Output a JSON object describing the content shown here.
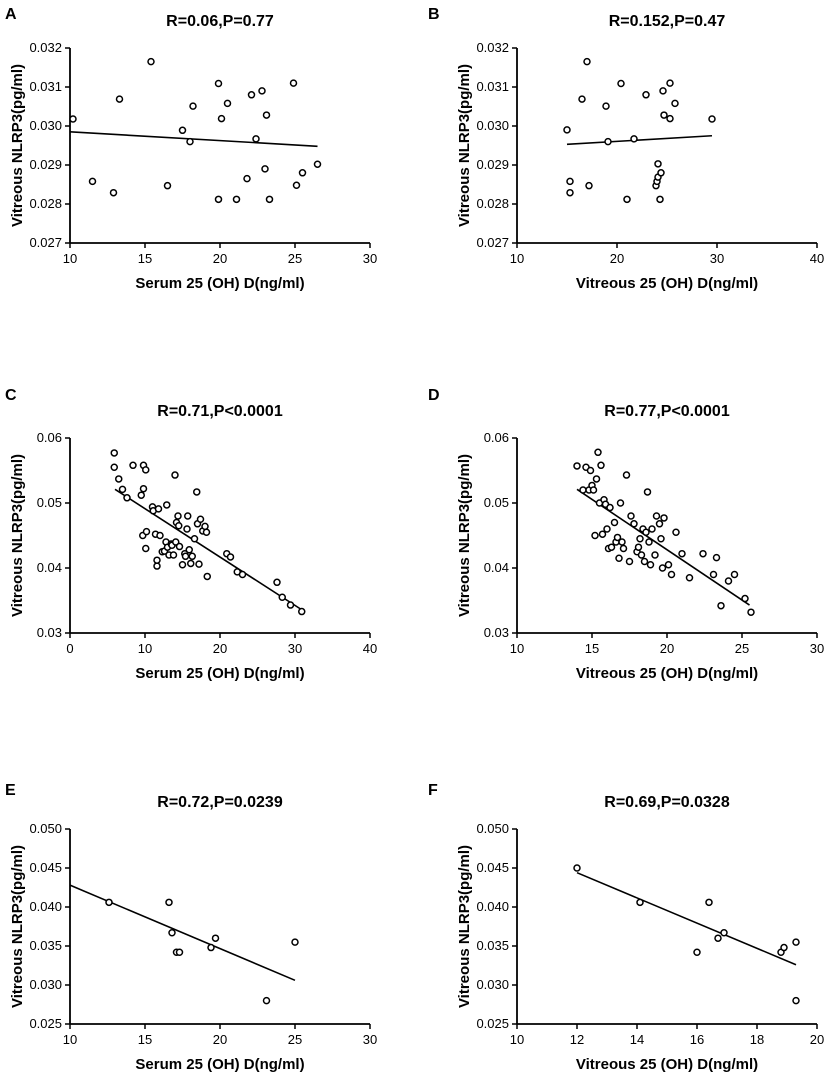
{
  "chart_data": [
    {
      "letter": "A",
      "type": "scatter",
      "title": "R=0.06,P=0.77",
      "xlabel": "Serum 25 (OH) D(ng/ml)",
      "ylabel": "Vitreous NLRP3(pg/ml)",
      "xlim": [
        10,
        30
      ],
      "ylim": [
        0.027,
        0.032
      ],
      "xticks": [
        "10",
        "15",
        "20",
        "25",
        "30"
      ],
      "yticks": [
        "0.027",
        "0.028",
        "0.029",
        "0.030",
        "0.031",
        "0.032"
      ],
      "fit": [
        [
          10,
          0.02985
        ],
        [
          26.5,
          0.02948
        ]
      ],
      "x": [
        10.2,
        11.5,
        12.9,
        13.3,
        15.4,
        16.5,
        17.5,
        18.0,
        18.2,
        19.9,
        19.9,
        20.1,
        20.5,
        21.1,
        21.8,
        22.1,
        22.4,
        22.8,
        23.0,
        23.1,
        23.3,
        24.9,
        25.1,
        25.5,
        26.5
      ],
      "y": [
        0.03018,
        0.02858,
        0.02829,
        0.03069,
        0.03165,
        0.02847,
        0.02989,
        0.0296,
        0.03051,
        0.03109,
        0.02812,
        0.03019,
        0.03058,
        0.02812,
        0.02865,
        0.0308,
        0.02967,
        0.0309,
        0.0289,
        0.03028,
        0.02812,
        0.0311,
        0.02848,
        0.0288,
        0.02902
      ]
    },
    {
      "letter": "B",
      "type": "scatter",
      "title": "R=0.152,P=0.47",
      "xlabel": "Vitreous 25 (OH) D(ng/ml)",
      "ylabel": "Vitreous NLRP3(pg/ml)",
      "xlim": [
        10,
        40
      ],
      "ylim": [
        0.027,
        0.032
      ],
      "xticks": [
        "10",
        "20",
        "30",
        "40"
      ],
      "yticks": [
        "0.027",
        "0.028",
        "0.029",
        "0.030",
        "0.031",
        "0.032"
      ],
      "fit": [
        [
          15,
          0.02953
        ],
        [
          29.5,
          0.02975
        ]
      ],
      "x": [
        15.0,
        15.3,
        15.3,
        16.5,
        17.0,
        17.2,
        18.9,
        19.1,
        20.4,
        21.0,
        21.7,
        22.9,
        23.9,
        24.0,
        24.1,
        24.1,
        24.3,
        24.4,
        24.6,
        24.7,
        25.3,
        25.3,
        25.8,
        29.5
      ],
      "y": [
        0.0299,
        0.02858,
        0.02829,
        0.03069,
        0.03165,
        0.02847,
        0.03051,
        0.0296,
        0.03109,
        0.02812,
        0.02967,
        0.0308,
        0.02847,
        0.02858,
        0.02869,
        0.02903,
        0.02812,
        0.0288,
        0.0309,
        0.03028,
        0.0311,
        0.03019,
        0.03058,
        0.03018
      ]
    },
    {
      "letter": "C",
      "type": "scatter",
      "title": "R=0.71,P<0.0001",
      "xlabel": "Serum 25 (OH) D(ng/ml)",
      "ylabel": "Vitreous NLRP3(pg/ml)",
      "xlim": [
        0,
        40
      ],
      "ylim": [
        0.03,
        0.06
      ],
      "xticks": [
        "0",
        "10",
        "20",
        "30",
        "40"
      ],
      "yticks": [
        "0.03",
        "0.04",
        "0.05",
        "0.06"
      ],
      "fit": [
        [
          6,
          0.0521
        ],
        [
          31,
          0.0335
        ]
      ],
      "x": [
        5.9,
        5.9,
        6.5,
        7.0,
        7.6,
        8.4,
        9.5,
        9.7,
        9.8,
        9.8,
        10.1,
        10.1,
        10.2,
        11.0,
        11.1,
        11.4,
        11.6,
        11.6,
        11.8,
        12.0,
        12.3,
        12.6,
        12.8,
        12.9,
        13.0,
        13.2,
        13.5,
        13.6,
        13.8,
        14.0,
        14.1,
        14.2,
        14.4,
        14.5,
        14.6,
        15.0,
        15.3,
        15.4,
        15.6,
        15.7,
        15.9,
        16.1,
        16.3,
        16.6,
        16.9,
        17.0,
        17.2,
        17.4,
        17.7,
        18.0,
        18.2,
        18.3,
        20.9,
        21.4,
        22.3,
        23.0,
        27.6,
        28.3,
        29.4,
        30.9
      ],
      "y": [
        0.0577,
        0.0555,
        0.0537,
        0.0521,
        0.0508,
        0.0558,
        0.0512,
        0.045,
        0.0522,
        0.0558,
        0.0551,
        0.043,
        0.0456,
        0.0494,
        0.0488,
        0.0452,
        0.0403,
        0.0412,
        0.0491,
        0.045,
        0.0425,
        0.0426,
        0.044,
        0.0497,
        0.0432,
        0.042,
        0.0437,
        0.0435,
        0.042,
        0.0543,
        0.044,
        0.047,
        0.048,
        0.0465,
        0.0433,
        0.0405,
        0.0422,
        0.0418,
        0.046,
        0.048,
        0.0428,
        0.0407,
        0.0418,
        0.0445,
        0.0517,
        0.0468,
        0.0406,
        0.0475,
        0.0457,
        0.0464,
        0.0455,
        0.0387,
        0.0422,
        0.0417,
        0.0394,
        0.039,
        0.0378,
        0.0355,
        0.0343,
        0.0333
      ]
    },
    {
      "letter": "D",
      "type": "scatter",
      "title": "R=0.77,P<0.0001",
      "xlabel": "Vitreous 25 (OH) D(ng/ml)",
      "ylabel": "Vitreous NLRP3(pg/ml)",
      "xlim": [
        10,
        30
      ],
      "ylim": [
        0.03,
        0.06
      ],
      "xticks": [
        "10",
        "15",
        "20",
        "25",
        "30"
      ],
      "yticks": [
        "0.03",
        "0.04",
        "0.05",
        "0.06"
      ],
      "fit": [
        [
          14,
          0.0521
        ],
        [
          25.5,
          0.0343
        ]
      ],
      "x": [
        14.0,
        14.4,
        14.6,
        14.8,
        14.9,
        15.0,
        15.1,
        15.2,
        15.3,
        15.4,
        15.5,
        15.6,
        15.7,
        15.8,
        15.9,
        16.0,
        16.1,
        16.2,
        16.3,
        16.5,
        16.6,
        16.7,
        16.8,
        16.9,
        17.0,
        17.1,
        17.3,
        17.5,
        17.6,
        17.8,
        18.0,
        18.1,
        18.2,
        18.3,
        18.4,
        18.5,
        18.6,
        18.7,
        18.8,
        18.9,
        19.0,
        19.2,
        19.3,
        19.5,
        19.6,
        19.7,
        19.8,
        20.1,
        20.3,
        20.6,
        21.0,
        21.5,
        22.4,
        23.1,
        23.3,
        23.6,
        24.1,
        24.5,
        25.2,
        25.6
      ],
      "y": [
        0.0557,
        0.052,
        0.0555,
        0.052,
        0.055,
        0.0527,
        0.052,
        0.045,
        0.0537,
        0.0578,
        0.05,
        0.0558,
        0.0452,
        0.0505,
        0.0498,
        0.046,
        0.043,
        0.0493,
        0.0432,
        0.047,
        0.044,
        0.0447,
        0.0415,
        0.05,
        0.044,
        0.043,
        0.0543,
        0.041,
        0.048,
        0.0468,
        0.0425,
        0.0432,
        0.0445,
        0.042,
        0.046,
        0.041,
        0.0455,
        0.0517,
        0.044,
        0.0405,
        0.046,
        0.042,
        0.048,
        0.0468,
        0.0445,
        0.04,
        0.0477,
        0.0405,
        0.039,
        0.0455,
        0.0422,
        0.0385,
        0.0422,
        0.039,
        0.0416,
        0.0342,
        0.038,
        0.039,
        0.0353,
        0.0332
      ]
    },
    {
      "letter": "E",
      "type": "scatter",
      "title": "R=0.72,P=0.0239",
      "xlabel": "Serum 25 (OH) D(ng/ml)",
      "ylabel": "Vitreous NLRP3(pg/ml)",
      "xlim": [
        10,
        30
      ],
      "ylim": [
        0.025,
        0.05
      ],
      "xticks": [
        "10",
        "15",
        "20",
        "25",
        "30"
      ],
      "yticks": [
        "0.025",
        "0.030",
        "0.035",
        "0.040",
        "0.045",
        "0.050"
      ],
      "fit": [
        [
          10,
          0.0428
        ],
        [
          25,
          0.0306
        ]
      ],
      "x": [
        12.6,
        16.6,
        16.8,
        17.1,
        17.3,
        19.4,
        19.7,
        23.1,
        25.0
      ],
      "y": [
        0.0406,
        0.0406,
        0.0367,
        0.0342,
        0.0342,
        0.0348,
        0.036,
        0.028,
        0.0355
      ]
    },
    {
      "letter": "F",
      "type": "scatter",
      "title": "R=0.69,P=0.0328",
      "xlabel": "Vitreous 25 (OH) D(ng/ml)",
      "ylabel": "Vitreous NLRP3(pg/ml)",
      "xlim": [
        10,
        20
      ],
      "ylim": [
        0.025,
        0.05
      ],
      "xticks": [
        "10",
        "12",
        "14",
        "16",
        "18",
        "20"
      ],
      "yticks": [
        "0.025",
        "0.030",
        "0.035",
        "0.040",
        "0.045",
        "0.050"
      ],
      "fit": [
        [
          12,
          0.0444
        ],
        [
          19.3,
          0.0326
        ]
      ],
      "x": [
        12.0,
        14.1,
        16.0,
        16.4,
        16.7,
        16.9,
        18.8,
        18.9,
        19.3,
        19.3
      ],
      "y": [
        0.045,
        0.0406,
        0.0342,
        0.0406,
        0.036,
        0.0367,
        0.0342,
        0.0348,
        0.0355,
        0.028
      ]
    }
  ]
}
